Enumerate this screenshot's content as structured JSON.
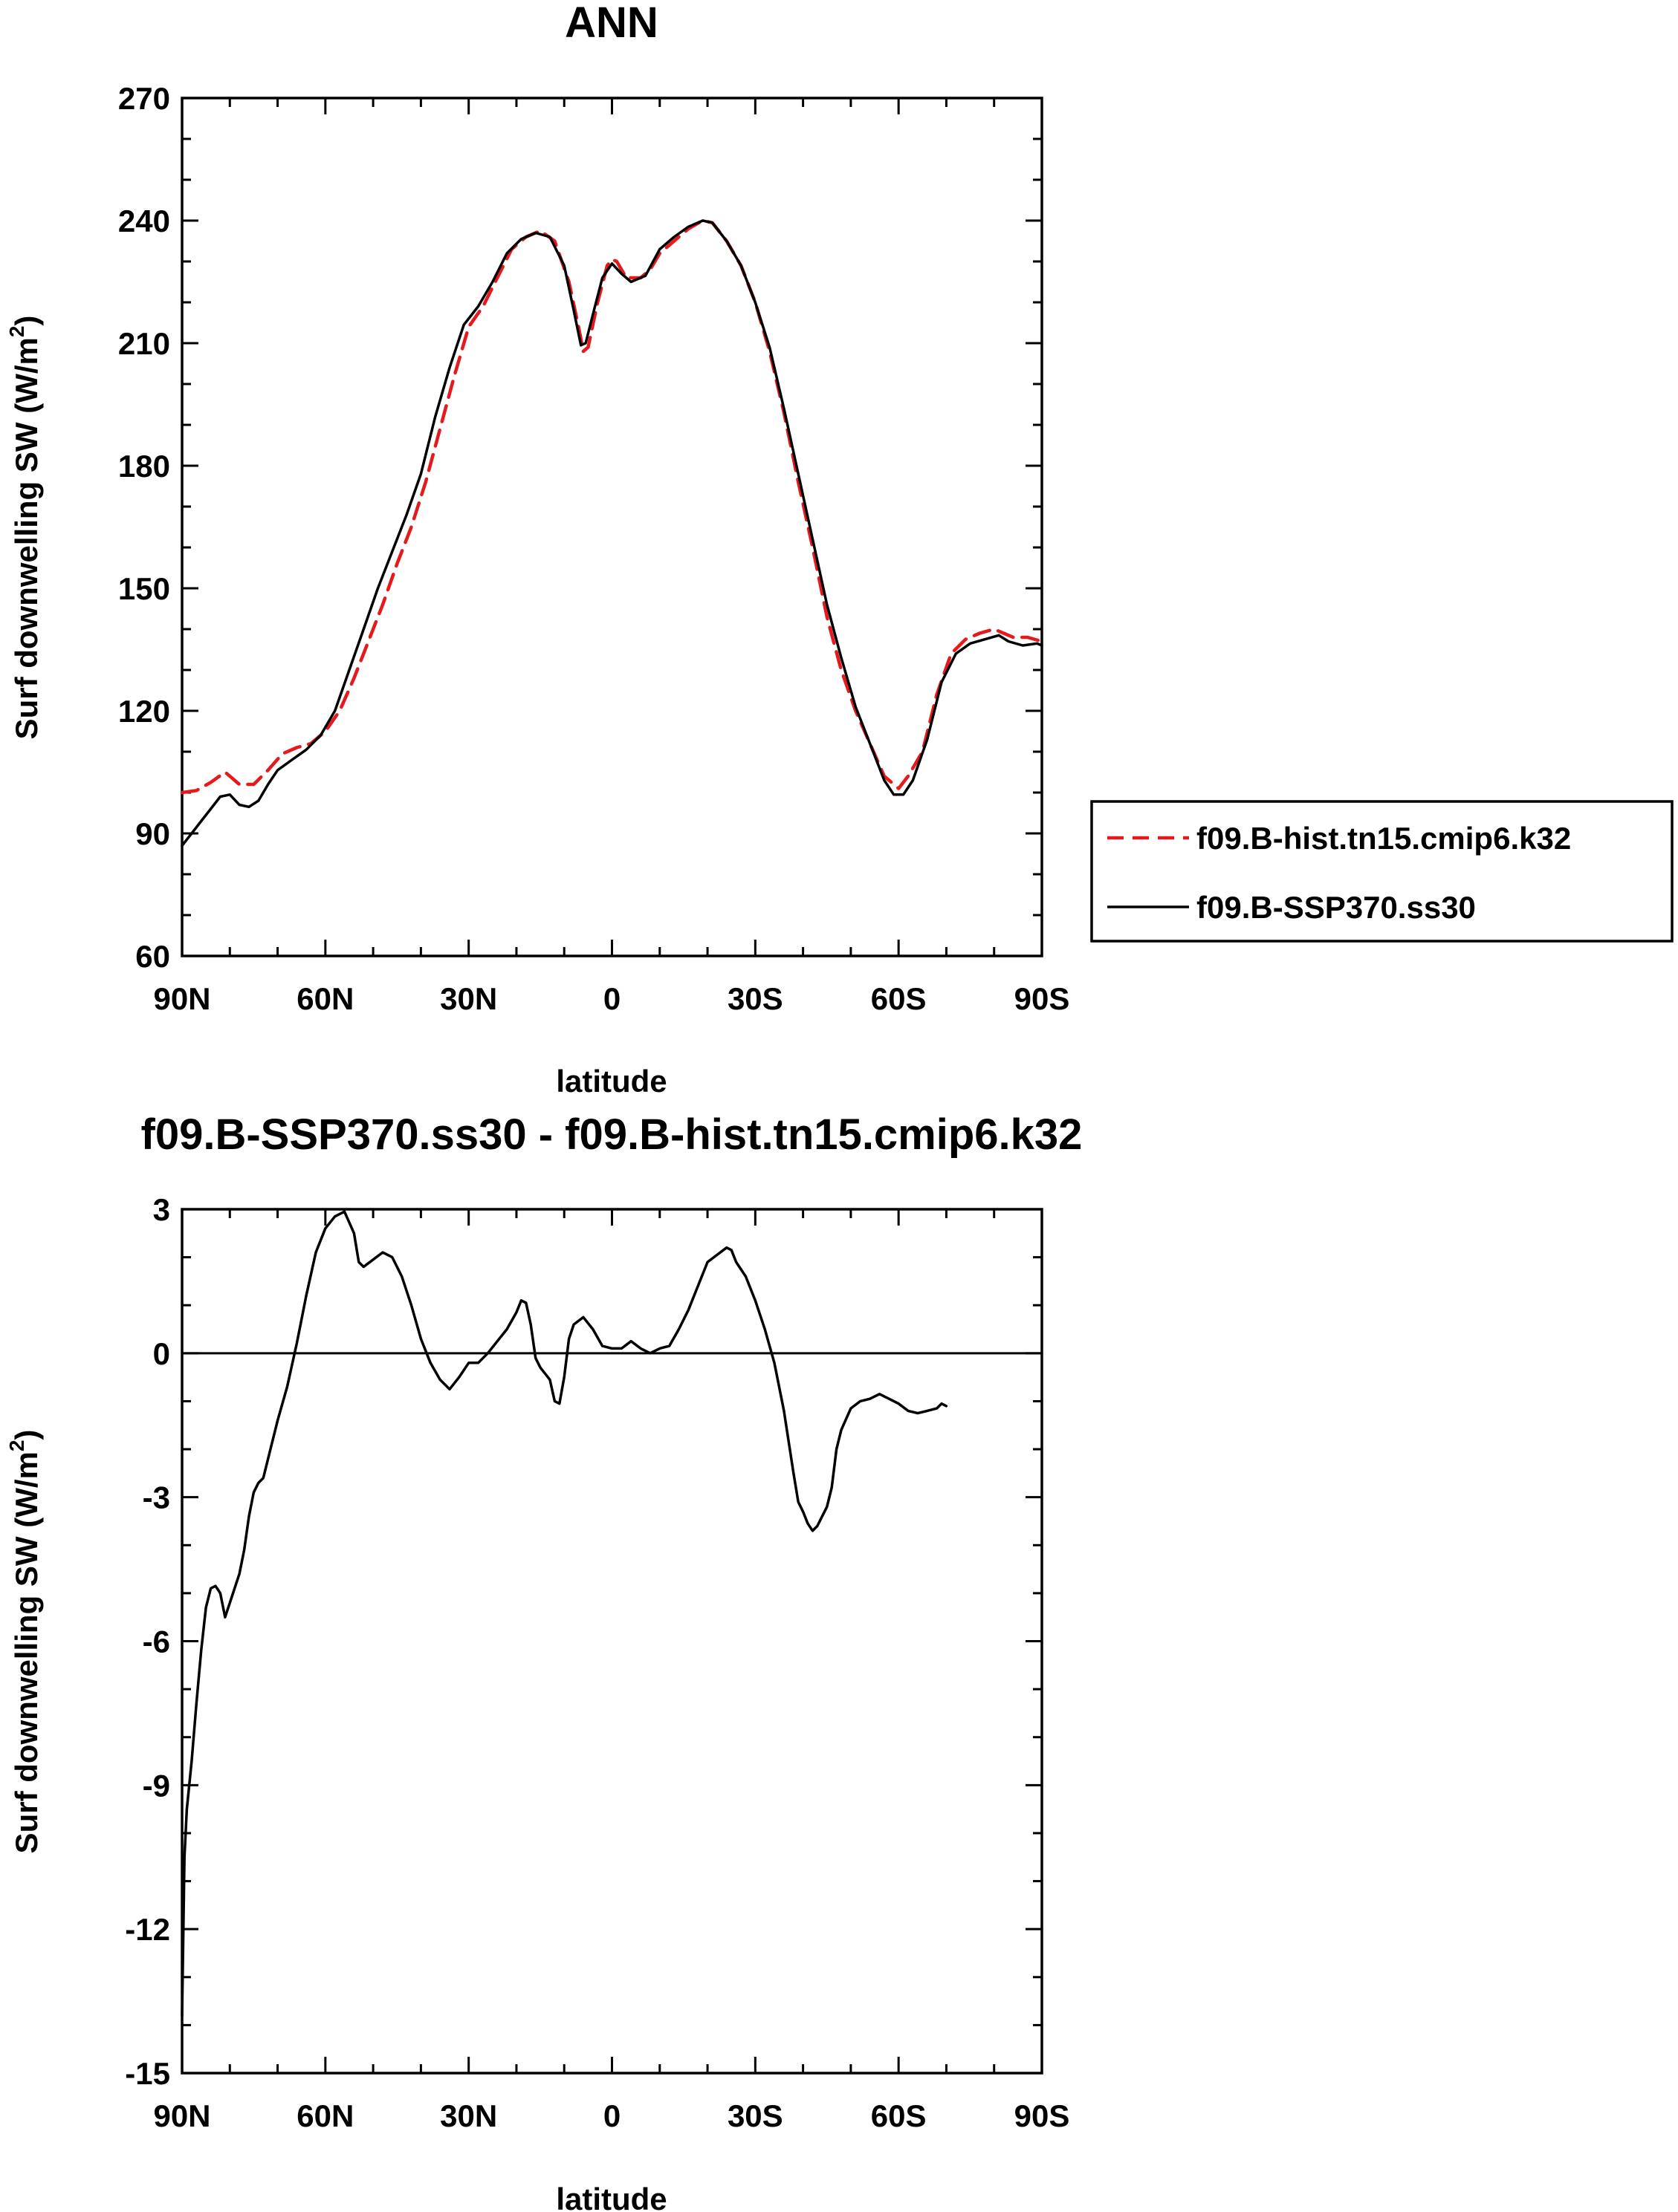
{
  "chart_data": [
    {
      "type": "line",
      "title": "ANN",
      "xlabel": "latitude",
      "ylabel": "Surf downwelling SW",
      "ylabel_units_prefix": "(W/m",
      "ylabel_units_exp": "2",
      "ylabel_units_suffix": ")",
      "xlim": [
        90,
        -90
      ],
      "ylim": [
        60,
        270
      ],
      "yticks": [
        60,
        90,
        120,
        150,
        180,
        210,
        240,
        270
      ],
      "y_minor_step": 10,
      "xticks": [
        {
          "value": 90,
          "label": "90N"
        },
        {
          "value": 60,
          "label": "60N"
        },
        {
          "value": 30,
          "label": "30N"
        },
        {
          "value": 0,
          "label": "0"
        },
        {
          "value": -30,
          "label": "30S"
        },
        {
          "value": -60,
          "label": "60S"
        },
        {
          "value": -90,
          "label": "90S"
        }
      ],
      "x_minor_step": 10,
      "grid": false,
      "legend": "right",
      "series": [
        {
          "name": "f09.B-hist.tn15.cmip6.k32",
          "color": "#e41a1c",
          "dashed": true,
          "points": [
            [
              90,
              100
            ],
            [
              87,
              100.5
            ],
            [
              84,
              102.5
            ],
            [
              81,
              105
            ],
            [
              78,
              102
            ],
            [
              75,
              102
            ],
            [
              72,
              105.5
            ],
            [
              69,
              109.5
            ],
            [
              66,
              111
            ],
            [
              63,
              112
            ],
            [
              60,
              115
            ],
            [
              57,
              120
            ],
            [
              54,
              128
            ],
            [
              51,
              137
            ],
            [
              48,
              146
            ],
            [
              45,
              156
            ],
            [
              42,
              165
            ],
            [
              39,
              176
            ],
            [
              36,
              189
            ],
            [
              33,
              202
            ],
            [
              30,
              214
            ],
            [
              27,
              219
            ],
            [
              24,
              226
            ],
            [
              21,
              233
            ],
            [
              18,
              236
            ],
            [
              15,
              237.5
            ],
            [
              12,
              235
            ],
            [
              9,
              225
            ],
            [
              7,
              214
            ],
            [
              6,
              208
            ],
            [
              5,
              209
            ],
            [
              3,
              220
            ],
            [
              1,
              229
            ],
            [
              0,
              230.5
            ],
            [
              -1,
              230
            ],
            [
              -3,
              226
            ],
            [
              -6,
              226
            ],
            [
              -8,
              228
            ],
            [
              -10,
              232
            ],
            [
              -13,
              235
            ],
            [
              -16,
              238
            ],
            [
              -19,
              240
            ],
            [
              -21,
              239.5
            ],
            [
              -24,
              235
            ],
            [
              -27,
              229
            ],
            [
              -30,
              220
            ],
            [
              -33,
              208
            ],
            [
              -36,
              193
            ],
            [
              -39,
              176
            ],
            [
              -42,
              160
            ],
            [
              -45,
              143
            ],
            [
              -48,
              130
            ],
            [
              -51,
              120
            ],
            [
              -54,
              112
            ],
            [
              -57,
              104
            ],
            [
              -60,
              101
            ],
            [
              -62,
              104
            ],
            [
              -65,
              110
            ],
            [
              -68,
              124
            ],
            [
              -71,
              134
            ],
            [
              -74,
              137.5
            ],
            [
              -77,
              139
            ],
            [
              -80,
              140
            ],
            [
              -82,
              139
            ],
            [
              -84,
              138
            ],
            [
              -87,
              138
            ],
            [
              -90,
              137
            ]
          ]
        },
        {
          "name": "f09.B-SSP370.ss30",
          "color": "#000000",
          "dashed": false,
          "points": [
            [
              90,
              87
            ],
            [
              88,
              90
            ],
            [
              86,
              93
            ],
            [
              84,
              96
            ],
            [
              82,
              99
            ],
            [
              80,
              99.5
            ],
            [
              78,
              97
            ],
            [
              76,
              96.5
            ],
            [
              74,
              98
            ],
            [
              72,
              102
            ],
            [
              70,
              105.5
            ],
            [
              67,
              108
            ],
            [
              64,
              110.5
            ],
            [
              61,
              114
            ],
            [
              58,
              120
            ],
            [
              55,
              130
            ],
            [
              52,
              140
            ],
            [
              49,
              150
            ],
            [
              46,
              159
            ],
            [
              43,
              168
            ],
            [
              40,
              178
            ],
            [
              37,
              192
            ],
            [
              34,
              204
            ],
            [
              31,
              214.5
            ],
            [
              28,
              219
            ],
            [
              25,
              225
            ],
            [
              22,
              232
            ],
            [
              19,
              235.5
            ],
            [
              16,
              237
            ],
            [
              13,
              236
            ],
            [
              10,
              229
            ],
            [
              8,
              218
            ],
            [
              6.5,
              209.5
            ],
            [
              5.5,
              210
            ],
            [
              4,
              217
            ],
            [
              2,
              226
            ],
            [
              0,
              229.5
            ],
            [
              -2,
              227
            ],
            [
              -4,
              225
            ],
            [
              -7,
              226.5
            ],
            [
              -10,
              233
            ],
            [
              -13,
              236
            ],
            [
              -16,
              238.5
            ],
            [
              -19,
              240
            ],
            [
              -21,
              239.5
            ],
            [
              -24,
              235
            ],
            [
              -27,
              229
            ],
            [
              -30,
              220
            ],
            [
              -33,
              209
            ],
            [
              -36,
              194
            ],
            [
              -39,
              178
            ],
            [
              -42,
              162
            ],
            [
              -45,
              146
            ],
            [
              -48,
              133
            ],
            [
              -51,
              121
            ],
            [
              -54,
              112
            ],
            [
              -57,
              103
            ],
            [
              -59,
              99.5
            ],
            [
              -61,
              99.5
            ],
            [
              -63,
              103
            ],
            [
              -66,
              113
            ],
            [
              -69,
              127
            ],
            [
              -72,
              134
            ],
            [
              -75,
              136.5
            ],
            [
              -78,
              137.5
            ],
            [
              -81,
              138.5
            ],
            [
              -83,
              137
            ],
            [
              -86,
              136
            ],
            [
              -89,
              136.5
            ],
            [
              -90,
              136
            ]
          ]
        }
      ]
    },
    {
      "type": "line",
      "title": "f09.B-SSP370.ss30 - f09.B-hist.tn15.cmip6.k32",
      "xlabel": "latitude",
      "ylabel": "Surf downwelling SW",
      "ylabel_units_prefix": "(W/m",
      "ylabel_units_exp": "2",
      "ylabel_units_suffix": ")",
      "xlim": [
        90,
        -90
      ],
      "ylim": [
        -15,
        3
      ],
      "yticks": [
        -15,
        -12,
        -9,
        -6,
        -3,
        0,
        3
      ],
      "y_minor_step": 1,
      "xticks": [
        {
          "value": 90,
          "label": "90N"
        },
        {
          "value": 60,
          "label": "60N"
        },
        {
          "value": 30,
          "label": "30N"
        },
        {
          "value": 0,
          "label": "0"
        },
        {
          "value": -30,
          "label": "30S"
        },
        {
          "value": -60,
          "label": "60S"
        },
        {
          "value": -90,
          "label": "90S"
        }
      ],
      "x_minor_step": 10,
      "grid": false,
      "zero_line": true,
      "series": [
        {
          "name": "",
          "color": "#000000",
          "dashed": false,
          "points": [
            [
              90,
              -13.8
            ],
            [
              89.5,
              -10.5
            ],
            [
              89,
              -9.5
            ],
            [
              88,
              -8.5
            ],
            [
              87,
              -7.3
            ],
            [
              86,
              -6.2
            ],
            [
              85,
              -5.3
            ],
            [
              84,
              -4.9
            ],
            [
              83,
              -4.85
            ],
            [
              82,
              -5.0
            ],
            [
              81,
              -5.5
            ],
            [
              80,
              -5.2
            ],
            [
              79,
              -4.9
            ],
            [
              78,
              -4.6
            ],
            [
              77,
              -4.1
            ],
            [
              76,
              -3.4
            ],
            [
              75,
              -2.9
            ],
            [
              74,
              -2.7
            ],
            [
              73,
              -2.6
            ],
            [
              72,
              -2.2
            ],
            [
              70,
              -1.4
            ],
            [
              68,
              -0.7
            ],
            [
              66,
              0.2
            ],
            [
              64,
              1.2
            ],
            [
              62,
              2.1
            ],
            [
              60,
              2.6
            ],
            [
              58,
              2.85
            ],
            [
              56,
              2.95
            ],
            [
              54,
              2.5
            ],
            [
              53,
              1.9
            ],
            [
              52,
              1.8
            ],
            [
              50,
              1.95
            ],
            [
              48,
              2.1
            ],
            [
              46,
              2.0
            ],
            [
              44,
              1.6
            ],
            [
              42,
              1.0
            ],
            [
              40,
              0.3
            ],
            [
              38,
              -0.2
            ],
            [
              36,
              -0.55
            ],
            [
              34,
              -0.75
            ],
            [
              32,
              -0.5
            ],
            [
              30,
              -0.2
            ],
            [
              28,
              -0.2
            ],
            [
              26,
              0.0
            ],
            [
              24,
              0.25
            ],
            [
              22,
              0.5
            ],
            [
              20,
              0.85
            ],
            [
              19,
              1.1
            ],
            [
              18,
              1.05
            ],
            [
              17,
              0.6
            ],
            [
              16,
              -0.1
            ],
            [
              15,
              -0.3
            ],
            [
              13,
              -0.55
            ],
            [
              12,
              -1.0
            ],
            [
              11,
              -1.05
            ],
            [
              10,
              -0.5
            ],
            [
              9,
              0.3
            ],
            [
              8,
              0.6
            ],
            [
              6,
              0.75
            ],
            [
              4,
              0.5
            ],
            [
              2,
              0.15
            ],
            [
              0,
              0.1
            ],
            [
              -2,
              0.1
            ],
            [
              -4,
              0.25
            ],
            [
              -6,
              0.1
            ],
            [
              -8,
              0.0
            ],
            [
              -10,
              0.1
            ],
            [
              -12,
              0.15
            ],
            [
              -14,
              0.5
            ],
            [
              -16,
              0.9
            ],
            [
              -18,
              1.4
            ],
            [
              -20,
              1.9
            ],
            [
              -22,
              2.05
            ],
            [
              -24,
              2.2
            ],
            [
              -25,
              2.15
            ],
            [
              -26,
              1.9
            ],
            [
              -28,
              1.6
            ],
            [
              -30,
              1.1
            ],
            [
              -32,
              0.5
            ],
            [
              -34,
              -0.2
            ],
            [
              -36,
              -1.2
            ],
            [
              -38,
              -2.5
            ],
            [
              -39,
              -3.1
            ],
            [
              -40,
              -3.3
            ],
            [
              -41,
              -3.55
            ],
            [
              -42,
              -3.7
            ],
            [
              -43,
              -3.6
            ],
            [
              -44,
              -3.4
            ],
            [
              -45,
              -3.2
            ],
            [
              -46,
              -2.8
            ],
            [
              -47,
              -2.0
            ],
            [
              -48,
              -1.6
            ],
            [
              -50,
              -1.15
            ],
            [
              -52,
              -1.0
            ],
            [
              -54,
              -0.95
            ],
            [
              -56,
              -0.85
            ],
            [
              -58,
              -0.95
            ],
            [
              -60,
              -1.05
            ],
            [
              -62,
              -1.2
            ],
            [
              -64,
              -1.25
            ],
            [
              -66,
              -1.2
            ],
            [
              -68,
              -1.15
            ],
            [
              -69,
              -1.05
            ],
            [
              -70,
              -1.1
            ]
          ]
        }
      ]
    }
  ]
}
